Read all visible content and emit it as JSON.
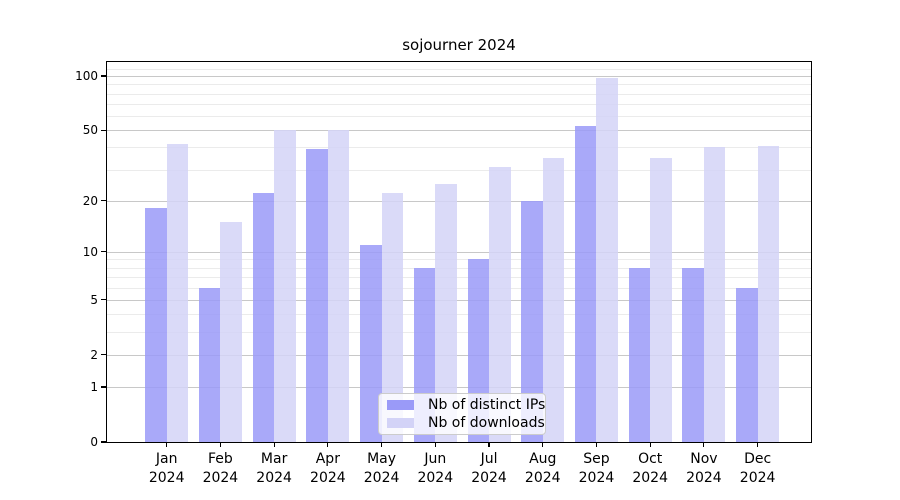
{
  "title": "sojourner 2024",
  "colors": {
    "ips": "#9a9af8",
    "downloads": "#d3d3f7",
    "grid_major": "#c8c8c8",
    "grid_minor": "#ebebeb",
    "axis": "#000000",
    "background": "#ffffff",
    "legend_border": "#cccccc"
  },
  "legend": {
    "items": [
      {
        "label": "Nb of distinct IPs",
        "series": "ips"
      },
      {
        "label": "Nb of downloads",
        "series": "downloads"
      }
    ]
  },
  "y_axis": {
    "scale": "log1p",
    "tick_labels": [
      "0",
      "1",
      "2",
      "5",
      "10",
      "20",
      "50",
      "100"
    ],
    "tick_values": [
      0,
      1,
      2,
      5,
      10,
      20,
      50,
      100
    ],
    "minor_tick_values": [
      3,
      4,
      6,
      7,
      8,
      9,
      30,
      40,
      60,
      70,
      80,
      90,
      110
    ],
    "range": [
      0,
      120
    ]
  },
  "x_axis": {
    "year": "2024",
    "months": [
      "Jan",
      "Feb",
      "Mar",
      "Apr",
      "May",
      "Jun",
      "Jul",
      "Aug",
      "Sep",
      "Oct",
      "Nov",
      "Dec"
    ]
  },
  "chart_data": {
    "type": "bar",
    "title": "sojourner 2024",
    "categories": [
      "Jan 2024",
      "Feb 2024",
      "Mar 2024",
      "Apr 2024",
      "May 2024",
      "Jun 2024",
      "Jul 2024",
      "Aug 2024",
      "Sep 2024",
      "Oct 2024",
      "Nov 2024",
      "Dec 2024"
    ],
    "series": [
      {
        "name": "Nb of distinct IPs",
        "color_key": "ips",
        "values": [
          18,
          6,
          22,
          39,
          11,
          8,
          9,
          20,
          53,
          8,
          8,
          6
        ]
      },
      {
        "name": "Nb of downloads",
        "color_key": "downloads",
        "values": [
          42,
          15,
          50,
          50,
          22,
          25,
          31,
          35,
          97,
          35,
          40,
          41
        ]
      }
    ],
    "yscale": "log1p",
    "ylim": [
      0,
      120
    ],
    "yticks": [
      0,
      1,
      2,
      5,
      10,
      20,
      50,
      100
    ],
    "grid": true,
    "legend_position": "lower center"
  }
}
